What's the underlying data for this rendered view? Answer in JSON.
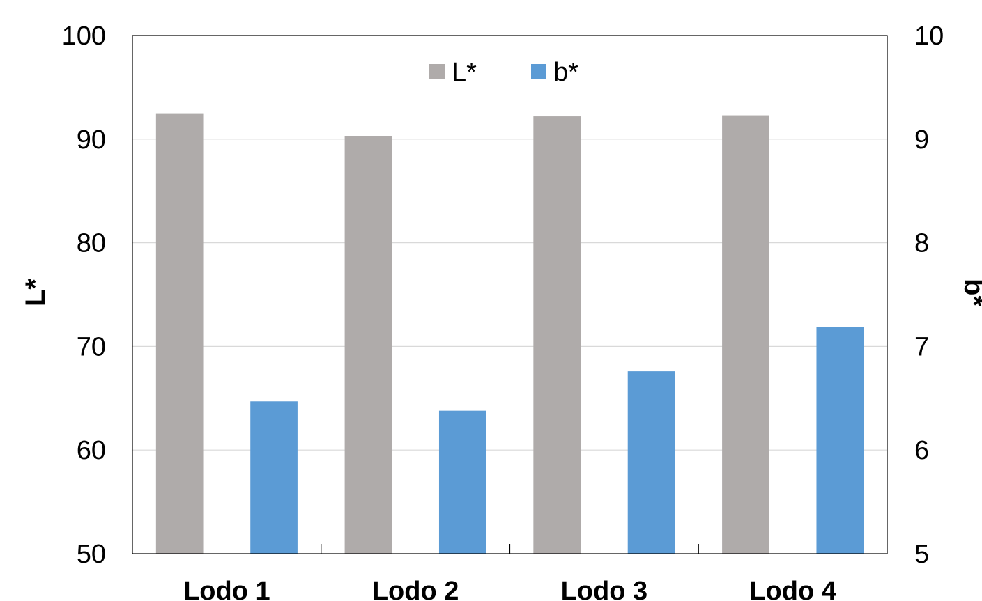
{
  "chart_data": {
    "type": "bar",
    "categories": [
      "Lodo 1",
      "Lodo 2",
      "Lodo 3",
      "Lodo 4"
    ],
    "series": [
      {
        "name": "L*",
        "axis": "left",
        "color": "#afabaa",
        "values": [
          92.5,
          90.3,
          92.2,
          92.3
        ]
      },
      {
        "name": "b*",
        "axis": "right",
        "color": "#5b9bd5",
        "values": [
          6.47,
          6.38,
          6.76,
          7.19
        ]
      }
    ],
    "ylabel": "L*",
    "ylabel_right": "b*",
    "ylim": [
      50,
      100
    ],
    "ylim_right": [
      5,
      10
    ],
    "yticks": [
      100,
      90,
      80,
      70,
      60,
      50
    ],
    "yticks_right": [
      10,
      9,
      8,
      7,
      6,
      5
    ],
    "grid": true,
    "legend": "top-center"
  }
}
